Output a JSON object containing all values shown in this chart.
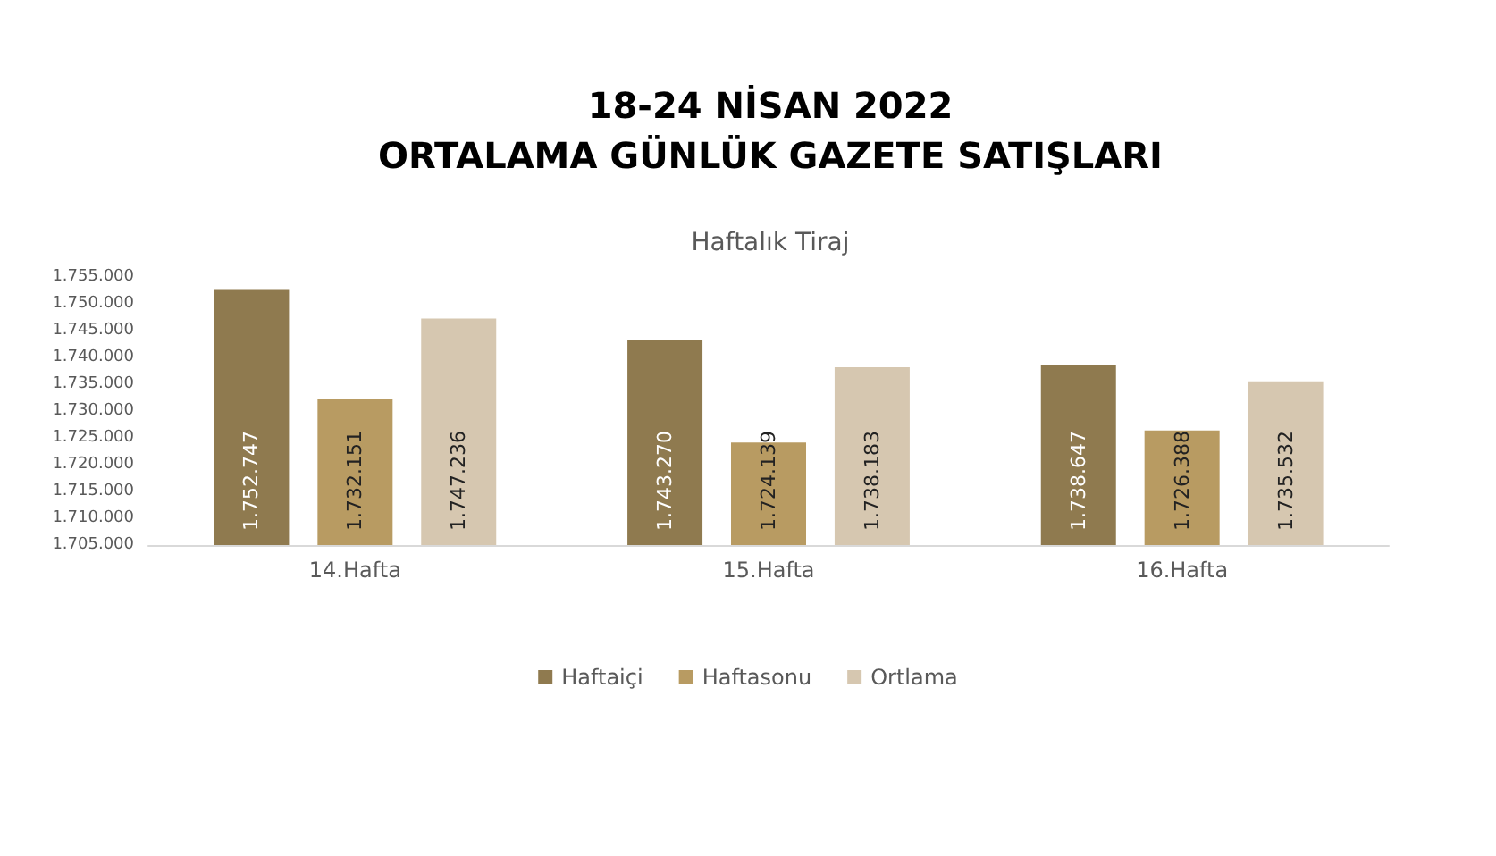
{
  "chart_data": {
    "type": "bar",
    "title": "18-24 NİSAN 2022\nORTALAMA GÜNLÜK GAZETE SATIŞLARI",
    "subtitle": "Haftalık Tiraj",
    "categories": [
      "14.Hafta",
      "15.Hafta",
      "16.Hafta"
    ],
    "series": [
      {
        "name": "Haftaiçi",
        "color": "#8f7a4f",
        "values": [
          1752747,
          1743270,
          1738647
        ],
        "value_labels": [
          "1.752.747",
          "1.743.270",
          "1.738.647"
        ]
      },
      {
        "name": "Haftasonu",
        "color": "#b89b62",
        "values": [
          1732151,
          1724139,
          1726388
        ],
        "value_labels": [
          "1.732.151",
          "1.724.139",
          "1.726.388"
        ]
      },
      {
        "name": "Ortlama",
        "color": "#d6c7b0",
        "values": [
          1747236,
          1738183,
          1735532
        ],
        "value_labels": [
          "1.747.236",
          "1.738.183",
          "1.735.532"
        ]
      }
    ],
    "ylim": [
      1705000,
      1755000
    ],
    "yticks": [
      {
        "value": 1705000,
        "label": "1.705.000"
      },
      {
        "value": 1710000,
        "label": "1.710.000"
      },
      {
        "value": 1715000,
        "label": "1.715.000"
      },
      {
        "value": 1720000,
        "label": "1.720.000"
      },
      {
        "value": 1725000,
        "label": "1.725.000"
      },
      {
        "value": 1730000,
        "label": "1.730.000"
      },
      {
        "value": 1735000,
        "label": "1.735.000"
      },
      {
        "value": 1740000,
        "label": "1.740.000"
      },
      {
        "value": 1745000,
        "label": "1.745.000"
      },
      {
        "value": 1750000,
        "label": "1.750.000"
      },
      {
        "value": 1755000,
        "label": "1.755.000"
      }
    ],
    "grid": false,
    "legend": "bottom"
  }
}
